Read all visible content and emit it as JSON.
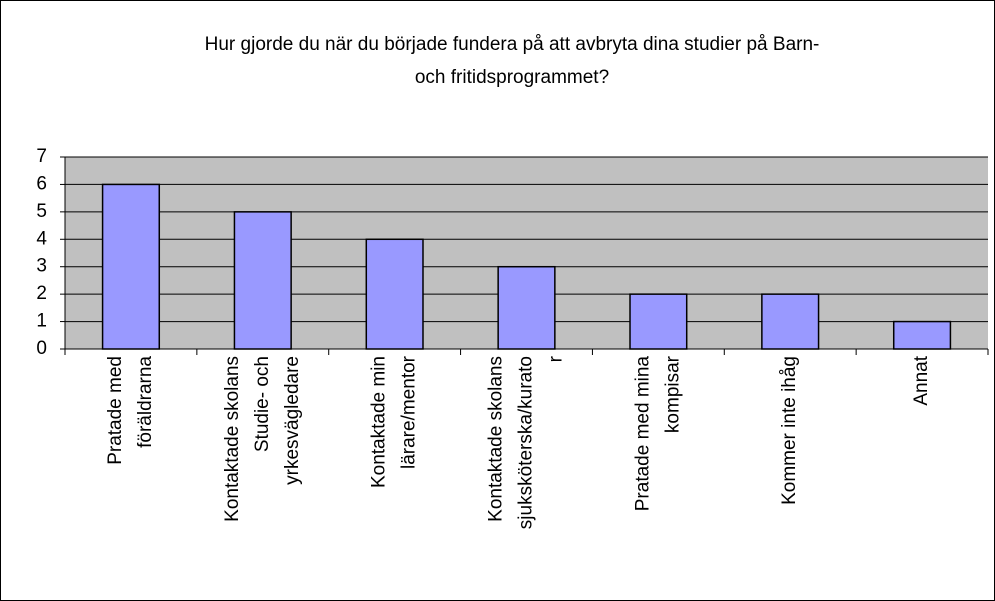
{
  "chart_data": {
    "type": "bar",
    "title": "Hur gjorde du när du började fundera på att avbryta dina studier på Barn-\noch fritidsprogrammet?",
    "categories": [
      "Pratade med\nföräldrarna",
      "Kontaktade skolans\nStudie- och\nyrkesvägledare",
      "Kontaktade min\nlärare/mentor",
      "Kontaktade skolans\nsjuksköterska/kurato\nr",
      "Pratade med mina\nkompisar",
      "Kommer inte ihåg",
      "Annat"
    ],
    "values": [
      6,
      5,
      4,
      3,
      2,
      2,
      1
    ],
    "color": "#9999ff",
    "ylim": [
      0,
      7
    ],
    "yticks": [
      0,
      1,
      2,
      3,
      4,
      5,
      6,
      7
    ],
    "grid": true
  }
}
